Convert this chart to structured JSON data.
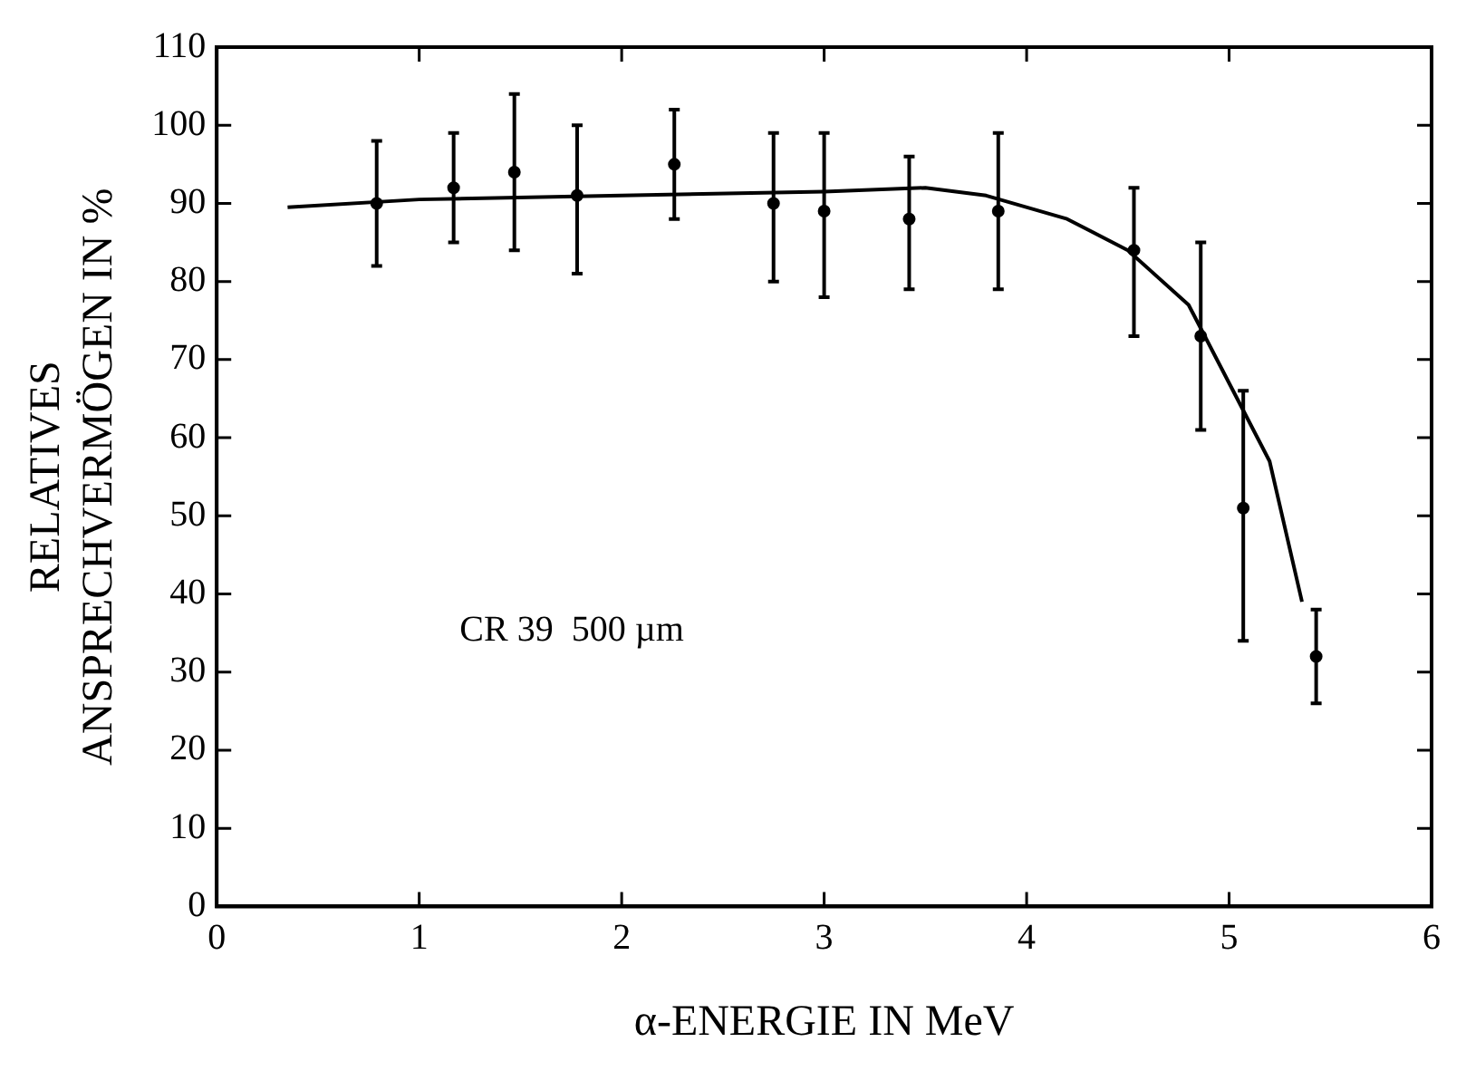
{
  "chart_data": {
    "type": "scatter",
    "xlabel": "α-ENERGIE IN MeV",
    "ylabel": "RELATIVES\nANSPRECHVERMÖGEN IN %",
    "xlim": [
      0,
      6
    ],
    "xticks": [
      0,
      1,
      2,
      3,
      4,
      5,
      6
    ],
    "ylim": [
      0,
      110
    ],
    "yticks": [
      0,
      10,
      20,
      30,
      40,
      50,
      60,
      70,
      80,
      90,
      100,
      110
    ],
    "grid": false,
    "legend": false,
    "annotations": [
      "CR 39  500 µm"
    ],
    "series": [
      {
        "color": "#000000",
        "marker": "circle",
        "x": [
          0.79,
          1.17,
          1.47,
          1.78,
          2.26,
          2.75,
          3.0,
          3.42,
          3.86,
          4.53,
          4.86,
          5.07,
          5.43
        ],
        "values": [
          90,
          92,
          94,
          91,
          95,
          90,
          89,
          88,
          89,
          84,
          73,
          51,
          32
        ],
        "errors": [
          [
            82,
            98
          ],
          [
            85,
            99
          ],
          [
            84,
            104
          ],
          [
            81,
            100
          ],
          [
            88,
            102
          ],
          [
            80,
            99
          ],
          [
            78,
            99
          ],
          [
            79,
            96
          ],
          [
            79,
            99
          ],
          [
            73,
            92
          ],
          [
            61,
            85
          ],
          [
            34,
            66
          ],
          [
            26,
            38
          ]
        ]
      },
      {
        "type": "line",
        "color": "#000000",
        "marker": "none",
        "line_style": "solid",
        "x": [
          0.35,
          1,
          2,
          3,
          3.5,
          3.8,
          4.2,
          4.5,
          4.8,
          5.0,
          5.2,
          5.36
        ],
        "values": [
          89.5,
          90.5,
          91,
          91.5,
          92,
          91,
          88,
          84,
          77,
          67,
          57,
          39
        ]
      }
    ]
  }
}
